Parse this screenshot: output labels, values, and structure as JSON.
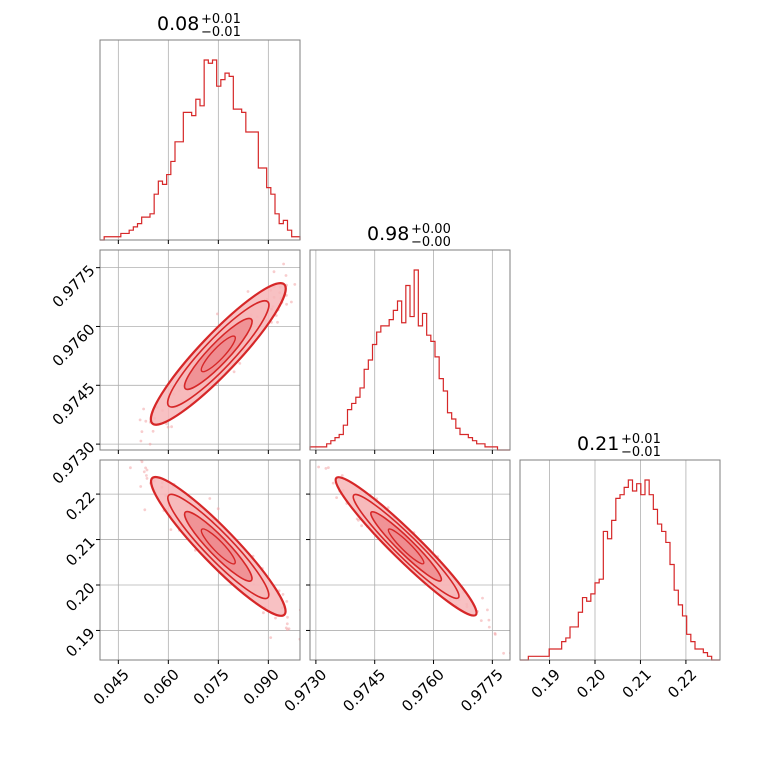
{
  "colors": {
    "accent": "#d62728",
    "fill_light": "#f7b6b8",
    "fill_mid": "#ee8c8f",
    "grid": "#b0b0b0"
  },
  "titles": [
    {
      "value": "0.08",
      "plus": "+0.01",
      "minus": "−0.01"
    },
    {
      "value": "0.98",
      "plus": "+0.00",
      "minus": "−0.00"
    },
    {
      "value": "0.21",
      "plus": "+0.01",
      "minus": "−0.01"
    }
  ],
  "chart_data": {
    "type": "corner-plot",
    "grid": true,
    "parameters": [
      {
        "range": [
          0.0395,
          0.0995
        ],
        "ticks": [
          0.045,
          0.06,
          0.075,
          0.09
        ],
        "tick_labels": [
          "0.045",
          "0.060",
          "0.075",
          "0.090"
        ]
      },
      {
        "range": [
          0.97285,
          0.97795
        ],
        "ticks": [
          0.973,
          0.9745,
          0.976,
          0.9775
        ],
        "tick_labels": [
          "0.9730",
          "0.9745",
          "0.9760",
          "0.9775"
        ]
      },
      {
        "range": [
          0.1835,
          0.2275
        ],
        "ticks": [
          0.19,
          0.2,
          0.21,
          0.22
        ],
        "tick_labels": [
          "0.19",
          "0.20",
          "0.21",
          "0.22"
        ]
      }
    ],
    "histograms": [
      {
        "param": 0,
        "counts": [
          0,
          1,
          1,
          1,
          1,
          2,
          2,
          3,
          4,
          5,
          7,
          7,
          8,
          14,
          18,
          17,
          20,
          24,
          30,
          30,
          39,
          39,
          38,
          43,
          41,
          55,
          54,
          55,
          47,
          49,
          51,
          50,
          40,
          40,
          39,
          33,
          33,
          33,
          22,
          22,
          16,
          14,
          8,
          5,
          6,
          3,
          1,
          1
        ]
      },
      {
        "param": 1,
        "counts": [
          1,
          1,
          1,
          1,
          2,
          3,
          4,
          5,
          8,
          13,
          15,
          17,
          20,
          26,
          29,
          34,
          38,
          40,
          40,
          42,
          45,
          48,
          41,
          53,
          43,
          58,
          40,
          44,
          37,
          35,
          30,
          23,
          19,
          12,
          10,
          7,
          5,
          5,
          4,
          3,
          2,
          2,
          1,
          1,
          1,
          0,
          0,
          0
        ]
      },
      {
        "param": 2,
        "counts": [
          0,
          0,
          1,
          1,
          1,
          1,
          1,
          3,
          3,
          3,
          5,
          6,
          9,
          9,
          13,
          17,
          16,
          18,
          21,
          22,
          35,
          33,
          38,
          44,
          45,
          47,
          49,
          46,
          48,
          45,
          49,
          45,
          41,
          37,
          35,
          32,
          26,
          19,
          15,
          12,
          7,
          5,
          3,
          3,
          2,
          1,
          0,
          0
        ]
      }
    ],
    "pairs": [
      {
        "x_param": 0,
        "y_param": 1,
        "center": [
          0.075,
          0.9753
        ],
        "sd": [
          0.0095,
          0.00085
        ],
        "correlation": 0.97
      },
      {
        "x_param": 0,
        "y_param": 2,
        "center": [
          0.075,
          0.2085
        ],
        "sd": [
          0.0095,
          0.0072
        ],
        "correlation": -0.975
      },
      {
        "x_param": 1,
        "y_param": 2,
        "center": [
          0.9753,
          0.2085
        ],
        "sd": [
          0.00085,
          0.0072
        ],
        "correlation": -0.985
      }
    ]
  }
}
